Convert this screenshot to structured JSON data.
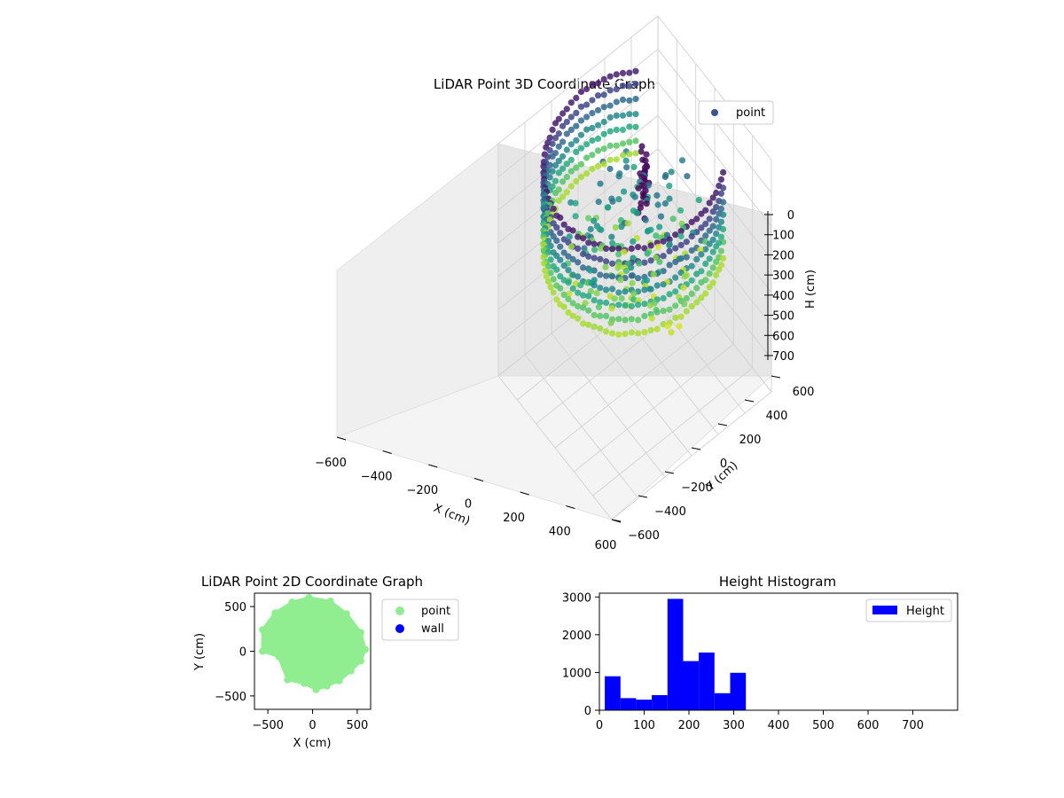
{
  "chart_data": [
    {
      "type": "scatter3d",
      "title": "LiDAR Point 3D Coordinate Graph",
      "xlabel": "X (cm)",
      "ylabel": "Y (cm)",
      "zlabel": "H (cm)",
      "xlim": [
        -600,
        600
      ],
      "ylim": [
        -600,
        600
      ],
      "zlim": [
        0,
        700
      ],
      "xticks": [
        "−600",
        "−400",
        "−200",
        "0",
        "200",
        "400",
        "600"
      ],
      "yticks": [
        "−600",
        "−400",
        "−200",
        "0",
        "200",
        "400",
        "600"
      ],
      "zticks": [
        "0",
        "100",
        "200",
        "300",
        "400",
        "500",
        "600",
        "700"
      ],
      "legend": {
        "label": "point",
        "position": "top-right"
      },
      "colormap": "viridis",
      "grid": true
    },
    {
      "type": "scatter",
      "title": "LiDAR Point 2D Coordinate Graph",
      "xlabel": "X (cm)",
      "ylabel": "Y (cm)",
      "xlim": [
        -650,
        650
      ],
      "ylim": [
        -650,
        650
      ],
      "xticks": [
        "−500",
        "0",
        "500"
      ],
      "yticks": [
        "−500",
        "0",
        "500"
      ],
      "series": [
        {
          "name": "point",
          "color": "#90ee90"
        },
        {
          "name": "wall",
          "color": "#0000ff"
        }
      ],
      "legend_position": "outside-right"
    },
    {
      "type": "bar",
      "title": "Height Histogram",
      "xlim": [
        0,
        800
      ],
      "ylim": [
        0,
        3100
      ],
      "xticks": [
        "0",
        "100",
        "200",
        "300",
        "400",
        "500",
        "600",
        "700"
      ],
      "yticks": [
        "0",
        "1000",
        "2000",
        "3000"
      ],
      "bin_width": 35,
      "bins": [
        {
          "x": 12,
          "count": 900
        },
        {
          "x": 47,
          "count": 320
        },
        {
          "x": 82,
          "count": 280
        },
        {
          "x": 117,
          "count": 400
        },
        {
          "x": 152,
          "count": 2950
        },
        {
          "x": 187,
          "count": 1300
        },
        {
          "x": 222,
          "count": 1530
        },
        {
          "x": 257,
          "count": 450
        },
        {
          "x": 292,
          "count": 990
        },
        {
          "x": 327,
          "count": 0
        }
      ],
      "series": [
        {
          "name": "Height",
          "color": "#0000ff"
        }
      ],
      "legend_position": "top-right"
    }
  ]
}
